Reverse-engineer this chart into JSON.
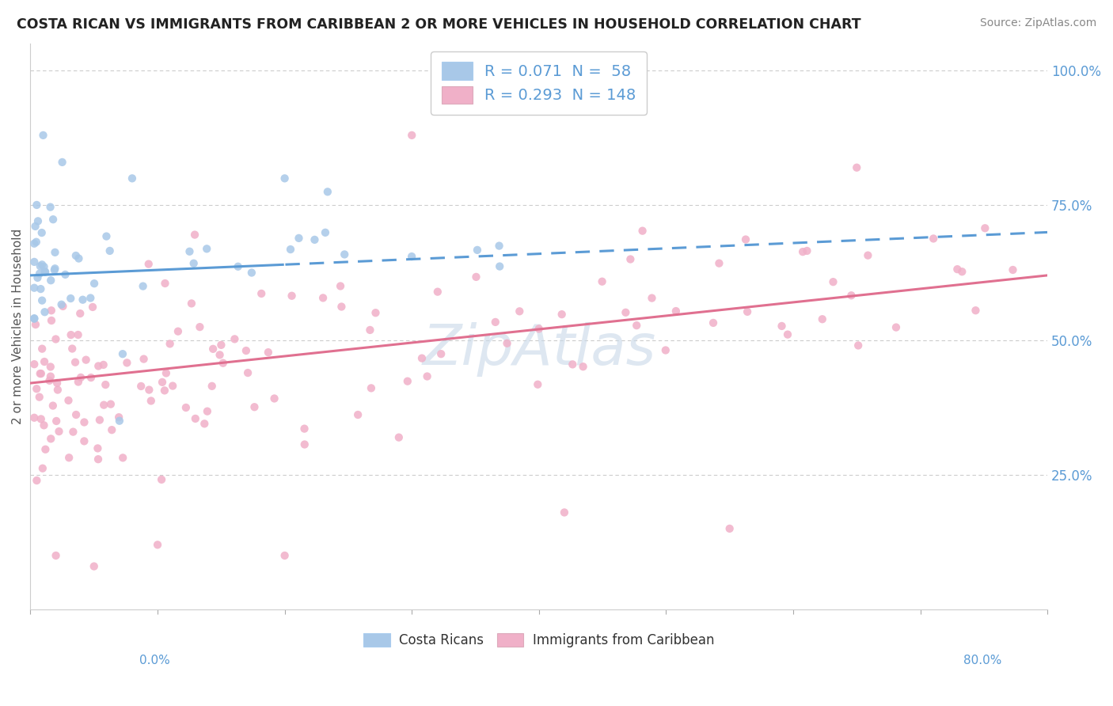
{
  "title": "COSTA RICAN VS IMMIGRANTS FROM CARIBBEAN 2 OR MORE VEHICLES IN HOUSEHOLD CORRELATION CHART",
  "source": "Source: ZipAtlas.com",
  "ylabel": "2 or more Vehicles in Household",
  "blue_line_color": "#5b9bd5",
  "pink_line_color": "#e07090",
  "blue_dot_color": "#a8c8e8",
  "pink_dot_color": "#f0b0c8",
  "blue_R": 0.071,
  "blue_N": 58,
  "pink_R": 0.293,
  "pink_N": 148,
  "xmin": 0.0,
  "xmax": 0.8,
  "ymin": 0.0,
  "ymax": 1.05,
  "bg_color": "#ffffff",
  "grid_color": "#cccccc",
  "blue_trend_y0": 0.62,
  "blue_trend_y1": 0.7,
  "blue_trend_x_solid_end": 0.2,
  "pink_trend_y0": 0.42,
  "pink_trend_y1": 0.62,
  "watermark_text": "ZipAtlas",
  "watermark_color": "#c8d8e8"
}
